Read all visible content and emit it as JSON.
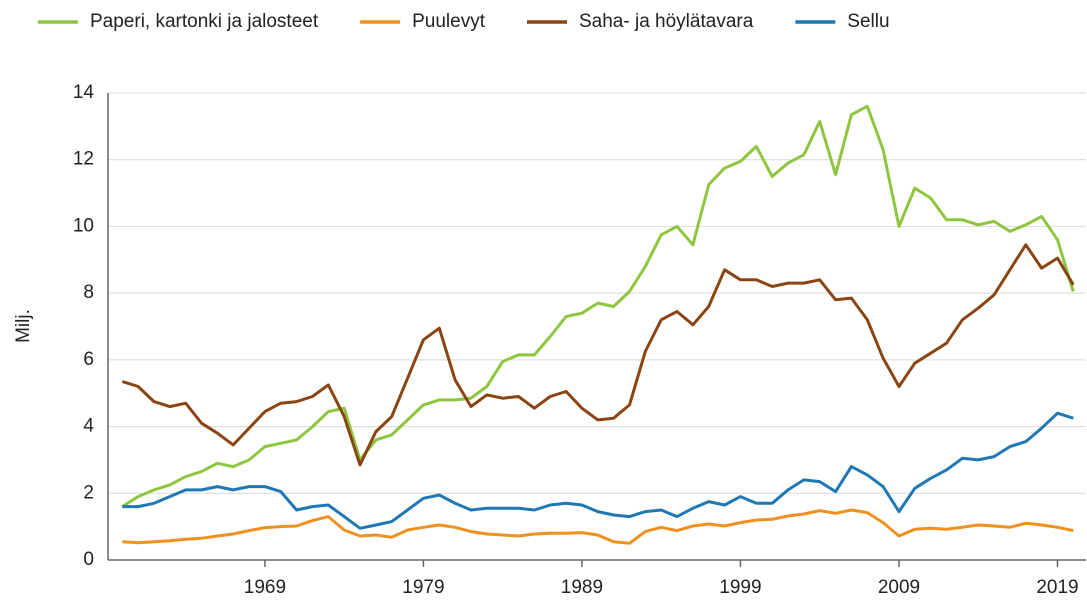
{
  "chart_data": {
    "type": "line",
    "y_label": "Milj.",
    "x": [
      1960,
      1961,
      1962,
      1963,
      1964,
      1965,
      1966,
      1967,
      1968,
      1969,
      1970,
      1971,
      1972,
      1973,
      1974,
      1975,
      1976,
      1977,
      1978,
      1979,
      1980,
      1981,
      1982,
      1983,
      1984,
      1985,
      1986,
      1987,
      1988,
      1989,
      1990,
      1991,
      1992,
      1993,
      1994,
      1995,
      1996,
      1997,
      1998,
      1999,
      2000,
      2001,
      2002,
      2003,
      2004,
      2005,
      2006,
      2007,
      2008,
      2009,
      2010,
      2011,
      2012,
      2013,
      2014,
      2015,
      2016,
      2017,
      2018,
      2019,
      2020
    ],
    "xlim": [
      1959.1,
      2020.8
    ],
    "xticks": [
      1969,
      1979,
      1989,
      1999,
      2009,
      2019
    ],
    "ylim": [
      0,
      14
    ],
    "yticks": [
      0,
      2,
      4,
      6,
      8,
      10,
      12,
      14
    ],
    "grid": true,
    "legend": "top",
    "series": [
      {
        "name": "Paperi, kartonki ja jalosteet",
        "color": "#8dc63f",
        "values": [
          1.6,
          1.9,
          2.1,
          2.25,
          2.5,
          2.65,
          2.9,
          2.8,
          3.0,
          3.4,
          3.5,
          3.6,
          4.0,
          4.45,
          4.55,
          3.0,
          3.6,
          3.75,
          4.2,
          4.65,
          4.8,
          4.8,
          4.85,
          5.2,
          5.95,
          6.15,
          6.15,
          6.7,
          7.3,
          7.4,
          7.7,
          7.6,
          8.05,
          8.8,
          9.75,
          10.0,
          9.45,
          11.25,
          11.75,
          11.95,
          12.4,
          11.5,
          11.9,
          12.15,
          13.15,
          11.55,
          13.35,
          13.6,
          12.3,
          10.0,
          11.15,
          10.85,
          10.2,
          10.2,
          10.05,
          10.15,
          9.85,
          10.05,
          10.3,
          9.6,
          8.05
        ]
      },
      {
        "name": "Puulevyt",
        "color": "#f0901e",
        "values": [
          0.55,
          0.52,
          0.55,
          0.58,
          0.62,
          0.65,
          0.72,
          0.78,
          0.88,
          0.97,
          1.0,
          1.02,
          1.18,
          1.3,
          0.9,
          0.72,
          0.75,
          0.68,
          0.9,
          0.98,
          1.05,
          0.98,
          0.85,
          0.78,
          0.75,
          0.72,
          0.78,
          0.8,
          0.8,
          0.82,
          0.75,
          0.55,
          0.5,
          0.85,
          0.98,
          0.88,
          1.02,
          1.08,
          1.02,
          1.12,
          1.2,
          1.22,
          1.32,
          1.38,
          1.48,
          1.4,
          1.5,
          1.42,
          1.12,
          0.72,
          0.92,
          0.95,
          0.92,
          0.98,
          1.05,
          1.02,
          0.98,
          1.1,
          1.05,
          0.98,
          0.88
        ]
      },
      {
        "name": "Saha- ja höylätavara",
        "color": "#8b4513",
        "values": [
          5.35,
          5.2,
          4.75,
          4.6,
          4.7,
          4.1,
          3.8,
          3.45,
          3.95,
          4.45,
          4.7,
          4.75,
          4.9,
          5.25,
          4.3,
          2.85,
          3.85,
          4.3,
          5.45,
          6.6,
          6.95,
          5.4,
          4.6,
          4.95,
          4.85,
          4.9,
          4.55,
          4.9,
          5.05,
          4.55,
          4.2,
          4.25,
          4.65,
          6.25,
          7.2,
          7.45,
          7.05,
          7.6,
          8.7,
          8.4,
          8.4,
          8.2,
          8.3,
          8.3,
          8.4,
          7.8,
          7.85,
          7.2,
          6.05,
          5.2,
          5.9,
          6.2,
          6.5,
          7.2,
          7.55,
          7.95,
          8.7,
          9.45,
          8.75,
          9.05,
          8.25
        ]
      },
      {
        "name": "Sellu",
        "color": "#1f78b4",
        "values": [
          1.6,
          1.6,
          1.7,
          1.9,
          2.1,
          2.1,
          2.2,
          2.1,
          2.2,
          2.2,
          2.05,
          1.5,
          1.6,
          1.65,
          1.3,
          0.95,
          1.05,
          1.15,
          1.5,
          1.85,
          1.95,
          1.7,
          1.5,
          1.55,
          1.55,
          1.55,
          1.5,
          1.65,
          1.7,
          1.65,
          1.45,
          1.35,
          1.3,
          1.45,
          1.5,
          1.3,
          1.55,
          1.75,
          1.65,
          1.9,
          1.7,
          1.7,
          2.1,
          2.4,
          2.35,
          2.05,
          2.8,
          2.55,
          2.2,
          1.45,
          2.15,
          2.45,
          2.7,
          3.05,
          3.0,
          3.1,
          3.4,
          3.55,
          3.95,
          4.4,
          4.25
        ]
      }
    ]
  }
}
